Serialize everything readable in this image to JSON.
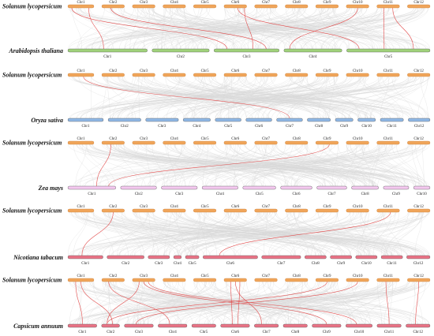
{
  "colors": {
    "sl": "#f0a55a",
    "sl_stroke": "#c9823e",
    "background_link": "#d8d8d8",
    "highlight_link": "#e24a4a",
    "panels": [
      "#a0d27a",
      "#8fb8e6",
      "#f4c8ef",
      "#ea7386",
      "#ea7386"
    ]
  },
  "reference": {
    "species": "Solanum lycopersicum",
    "chromosomes": [
      "Chr1",
      "Chr2",
      "Chr3",
      "Chr4",
      "Chr5",
      "Chr6",
      "Chr7",
      "Chr8",
      "Chr9",
      "Chr10",
      "Chr11",
      "Chr12"
    ]
  },
  "panels": [
    {
      "species": "Arabidopsis thaliana",
      "chromosomes": [
        "Chr1",
        "Chr2",
        "Chr3",
        "Chr4",
        "Chr5"
      ]
    },
    {
      "species": "Oryza sativa",
      "chromosomes": [
        "Chr1",
        "Chr2",
        "Chr3",
        "Chr4",
        "Chr5",
        "Chr6",
        "Chr7",
        "Chr8",
        "Chr9",
        "Chr10",
        "Chr11",
        "Chr12"
      ]
    },
    {
      "species": "Zea mays",
      "chromosomes": [
        "Chr1",
        "Chr2",
        "Chr3",
        "Chr4",
        "Chr5",
        "Chr6",
        "Chr7",
        "Chr8",
        "Chr9",
        "Chr10"
      ]
    },
    {
      "species": "Nicotiana tabacum",
      "chromosomes": [
        "Chr1",
        "Chr2",
        "Chr3",
        "Chr4",
        "Chr5",
        "Chr6",
        "Chr7",
        "Chr8",
        "Chr9",
        "Chr10",
        "Chr11",
        "Chr12"
      ]
    },
    {
      "species": "Capsicum annuum",
      "chromosomes": [
        "Chr1",
        "Chr2",
        "Chr3",
        "Chr4",
        "Chr5",
        "Chr6",
        "Chr7",
        "Chr8",
        "Chr9",
        "Chr10",
        "Chr11",
        "Chr12"
      ]
    }
  ]
}
